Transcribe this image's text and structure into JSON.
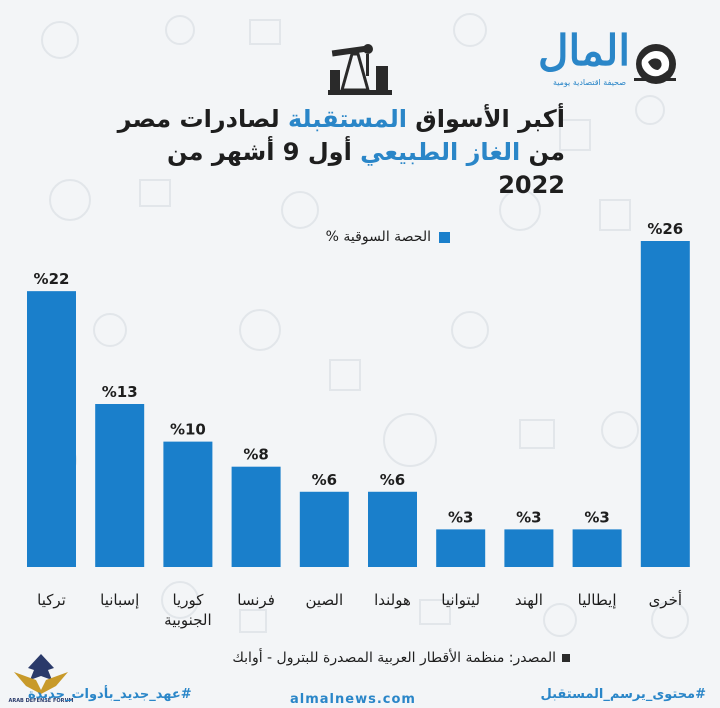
{
  "logo": {
    "name": "المال",
    "tagline": "صحيفة اقتصادية يومية"
  },
  "title": {
    "line1_hl": "المستقبلة",
    "line1_a": "أكبر الأسواق ",
    "line1_b": " لصادرات مصر",
    "line2_a": "من ",
    "line2_hl": "الغاز الطبيعي",
    "line2_b": " أول 9 أشهر من 2022"
  },
  "legend": {
    "label": "الحصة السوقية %"
  },
  "chart_data": {
    "type": "bar",
    "categories": [
      "تركيا",
      "إسبانيا",
      "كوريا الجنوبية",
      "فرنسا",
      "الصين",
      "هولندا",
      "ليتوانيا",
      "الهند",
      "إيطاليا",
      "أخرى"
    ],
    "category_lines": [
      [
        "تركيا"
      ],
      [
        "إسبانيا"
      ],
      [
        "كوريا",
        "الجنوبية"
      ],
      [
        "فرنسا"
      ],
      [
        "الصين"
      ],
      [
        "هولندا"
      ],
      [
        "ليتوانيا"
      ],
      [
        "الهند"
      ],
      [
        "إيطاليا"
      ],
      [
        "أخرى"
      ]
    ],
    "series": [
      {
        "name": "الحصة السوقية %",
        "values": [
          22,
          13,
          10,
          8,
          6,
          6,
          3,
          3,
          3,
          26
        ]
      }
    ],
    "labels": [
      "%22",
      "%13",
      "%10",
      "%8",
      "%6",
      "%6",
      "%3",
      "%3",
      "%3",
      "%26"
    ],
    "ylim": [
      0,
      26
    ],
    "grid": false,
    "legend_position": "top-center",
    "bar_color": "#1a7fcb"
  },
  "source": "المصدر: منظمة الأقطار العربية المصدرة للبترول - أوابك",
  "footer": {
    "left": "#عهد_جديد_بأدوات_جديدة",
    "center": "almalnews.com",
    "right": "#محتوى_يرسم_المستقبل"
  },
  "watermark": {
    "text": "ARAB DEFENSE FORUM"
  }
}
